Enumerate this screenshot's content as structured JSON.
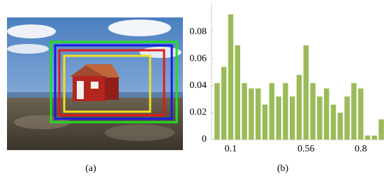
{
  "chart_data": {
    "type": "bar",
    "categories": [
      null,
      null,
      "0.1",
      null,
      null,
      null,
      null,
      null,
      null,
      null,
      null,
      null,
      null,
      "0.56",
      null,
      null,
      null,
      null,
      null,
      null,
      null,
      "0.8",
      null,
      null,
      null
    ],
    "values": [
      0.042,
      0.054,
      0.093,
      0.07,
      0.042,
      0.038,
      0.038,
      0.026,
      0.042,
      0.032,
      0.042,
      0.032,
      0.048,
      0.07,
      0.042,
      0.032,
      0.038,
      0.026,
      0.02,
      0.032,
      0.042,
      0.038,
      0.003,
      0.003,
      0.015
    ],
    "color": "#9bbb59",
    "ylim": [
      0,
      0.1
    ],
    "yticks": [
      0,
      0.02,
      0.04,
      0.06,
      0.08
    ]
  },
  "captions": {
    "a": "(a)",
    "b": "(b)"
  }
}
